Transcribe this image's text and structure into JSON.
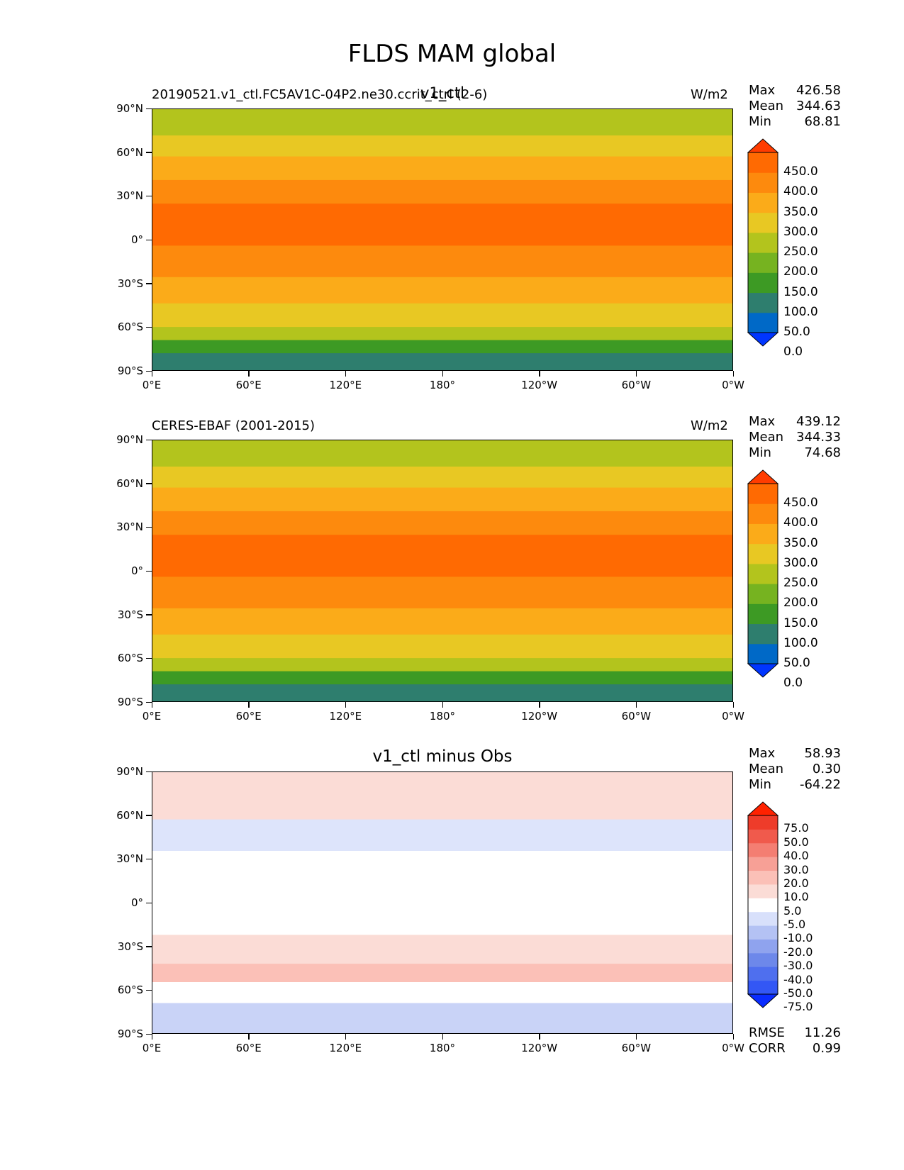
{
  "figure_title": "FLDS MAM global",
  "panels": [
    {
      "id": "test",
      "left_label": "20190521.v1_ctl.FC5AV1C-04P2.ne30.ccrit_ctrl (2-6)",
      "center_label": "v1_ctl",
      "right_label": "W/m2",
      "stats": {
        "max_label": "Max",
        "max": "426.58",
        "mean_label": "Mean",
        "mean": "344.63",
        "min_label": "Min",
        "min": "68.81"
      },
      "colorbar_levels": [
        "450.0",
        "400.0",
        "350.0",
        "300.0",
        "250.0",
        "200.0",
        "150.0",
        "100.0",
        "50.0",
        "0.0"
      ],
      "colorbar_colors": [
        "#0035ff",
        "#0069c7",
        "#2e7e6e",
        "#3d9a24",
        "#76b320",
        "#b3c41d",
        "#e8c823",
        "#fbab19",
        "#fd8a0d",
        "#ff6a02",
        "#ff3c00"
      ]
    },
    {
      "id": "obs",
      "left_label": "CERES-EBAF (2001-2015)",
      "center_label": "",
      "right_label": "W/m2",
      "stats": {
        "max_label": "Max",
        "max": "439.12",
        "mean_label": "Mean",
        "mean": "344.33",
        "min_label": "Min",
        "min": "74.68"
      },
      "colorbar_levels": [
        "450.0",
        "400.0",
        "350.0",
        "300.0",
        "250.0",
        "200.0",
        "150.0",
        "100.0",
        "50.0",
        "0.0"
      ],
      "colorbar_colors": [
        "#0035ff",
        "#0069c7",
        "#2e7e6e",
        "#3d9a24",
        "#76b320",
        "#b3c41d",
        "#e8c823",
        "#fbab19",
        "#fd8a0d",
        "#ff6a02",
        "#ff3c00"
      ]
    },
    {
      "id": "diff",
      "left_label": "",
      "center_label": "v1_ctl minus Obs",
      "right_label": "",
      "stats": {
        "max_label": "Max",
        "max": "58.93",
        "mean_label": "Mean",
        "mean": "0.30",
        "min_label": "Min",
        "min": "-64.22"
      },
      "colorbar_levels": [
        "75.0",
        "50.0",
        "40.0",
        "30.0",
        "20.0",
        "10.0",
        "5.0",
        "-5.0",
        "-10.0",
        "-20.0",
        "-30.0",
        "-40.0",
        "-50.0",
        "-75.0"
      ],
      "colorbar_colors": [
        "#0a2cff",
        "#3357f5",
        "#4f6fee",
        "#6d88ea",
        "#8fa3ee",
        "#b4c2f4",
        "#d8e0fb",
        "#ffffff",
        "#fbdcd6",
        "#fbc0b7",
        "#f7a096",
        "#f47e72",
        "#f05a4c",
        "#ee3c2a",
        "#ff2200"
      ],
      "rmse_label": "RMSE",
      "rmse": "11.26",
      "corr_label": "CORR",
      "corr": "0.99"
    }
  ],
  "axes": {
    "y_ticks": [
      "90°N",
      "60°N",
      "30°N",
      "0°",
      "30°S",
      "60°S",
      "90°S"
    ],
    "x_ticks": [
      "0°E",
      "60°E",
      "120°E",
      "180°",
      "120°W",
      "60°W",
      "0°W"
    ]
  }
}
